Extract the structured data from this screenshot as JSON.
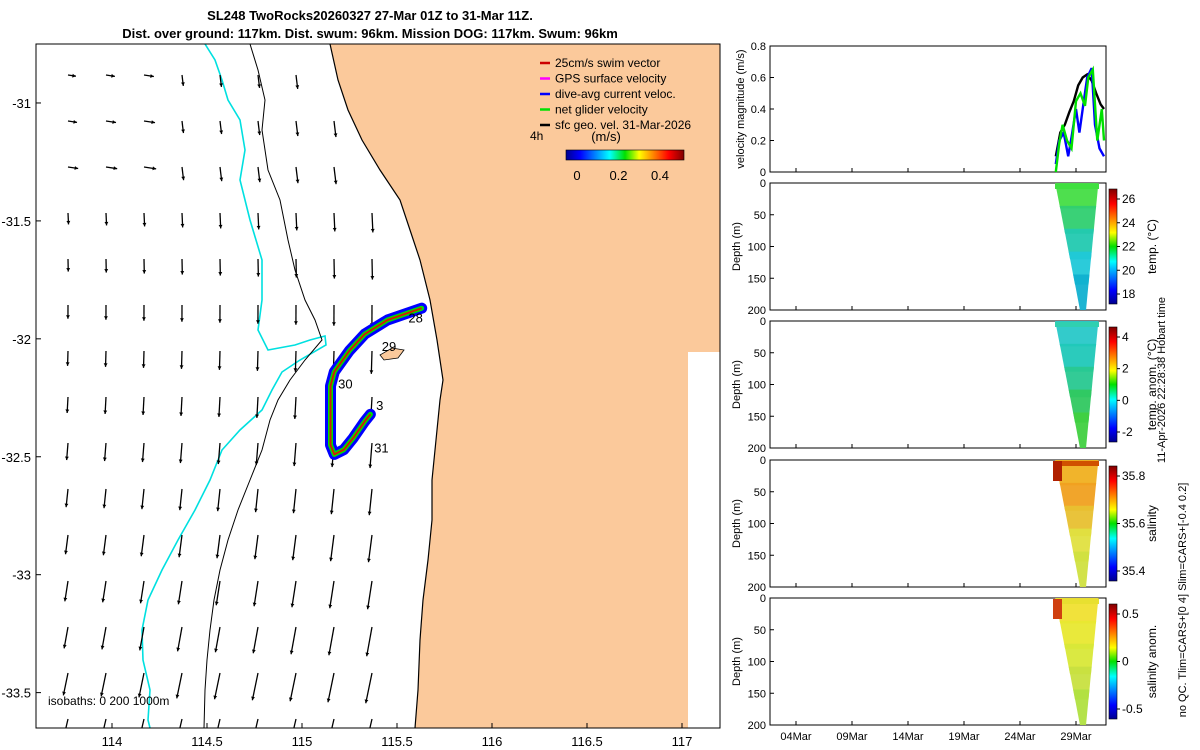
{
  "title": {
    "line1": "SL248 TwoRocks20260327 27-Mar 01Z to 31-Mar 11Z.",
    "line2": "Dist. over ground: 117km. Dist. swum: 96km. Mission DOG: 117km. Swum: 96km"
  },
  "map": {
    "legend": [
      {
        "label": "25cm/s swim vector",
        "color": "#cc0000"
      },
      {
        "label": "GPS surface velocity",
        "color": "#ff00ff"
      },
      {
        "label": "dive-avg current veloc.",
        "color": "#0000ff"
      },
      {
        "label": "net glider velocity",
        "color": "#00e000"
      },
      {
        "label": "sfc geo. vel. 31-Mar-2026",
        "color": "#000000"
      }
    ],
    "colorbar_title": "(m/s)",
    "colorbar_ticks": [
      "0",
      "0.2",
      "0.4"
    ],
    "scale_label": "4h",
    "isobath_label": "isobaths: 0   200  1000m",
    "x_ticks": [
      "114",
      "114.5",
      "115",
      "115.5",
      "116",
      "116.5",
      "117"
    ],
    "y_ticks": [
      "-31",
      "-31.5",
      "-32",
      "-32.5",
      "-33",
      "-33.5"
    ],
    "day_labels": [
      "28",
      "29",
      "30",
      "31",
      "3"
    ],
    "colors": {
      "land": "#fbc99b",
      "isobath_shallow": "#00e5e5",
      "coast": "#000000"
    }
  },
  "panels": {
    "velocity": {
      "ylabel": "velocity magnitude (m/s)",
      "y_ticks": [
        "0",
        "0.2",
        "0.4",
        "0.6",
        "0.8"
      ]
    },
    "temp": {
      "ylabel": "Depth (m)",
      "cbar_label": "temp. (°C)",
      "cbar_ticks": [
        "26",
        "24",
        "22",
        "20",
        "18"
      ]
    },
    "tanom": {
      "ylabel": "Depth (m)",
      "cbar_label": "temp. anom. (°C)",
      "cbar_ticks": [
        "4",
        "2",
        "0",
        "-2"
      ]
    },
    "sal": {
      "ylabel": "Depth (m)",
      "cbar_label": "salinity",
      "cbar_ticks": [
        "35.8",
        "35.6",
        "35.4"
      ]
    },
    "sanom": {
      "ylabel": "Depth (m)",
      "cbar_label": "salinity anom.",
      "cbar_ticks": [
        "0.5",
        "0",
        "-0.5"
      ]
    },
    "depth_ticks": [
      "0",
      "50",
      "100",
      "150",
      "200"
    ],
    "x_ticks": [
      "04Mar",
      "09Mar",
      "14Mar",
      "19Mar",
      "24Mar",
      "29Mar"
    ]
  },
  "side_note": {
    "right": "11-Apr-2026 22:28:38 Hobart time",
    "left": "no QC. Tlim=CARS+[0 4] Slim=CARS+[-0.4 0.2]"
  },
  "chart_data": [
    {
      "type": "scatter",
      "title": "SL248 TwoRocks20260327 27-Mar 01Z to 31-Mar 11Z.",
      "xlim": [
        113.6,
        117.2
      ],
      "ylim": [
        -33.65,
        -30.75
      ],
      "x_ticks": [
        114,
        114.5,
        115,
        115.5,
        116,
        116.5,
        117
      ],
      "y_ticks": [
        -31,
        -31.5,
        -32,
        -32.5,
        -33,
        -33.5
      ],
      "track": {
        "x": [
          115.63,
          115.45,
          115.33,
          115.25,
          115.17,
          115.15,
          115.15,
          115.17,
          115.22,
          115.27,
          115.33,
          115.36
        ],
        "y": [
          -31.87,
          -31.92,
          -31.98,
          -32.05,
          -32.14,
          -32.2,
          -32.45,
          -32.49,
          -32.47,
          -32.42,
          -32.35,
          -32.32
        ]
      },
      "annotations": [
        {
          "text": "28",
          "x": 115.56,
          "y": -31.91
        },
        {
          "text": "29",
          "x": 115.42,
          "y": -32.03
        },
        {
          "text": "30",
          "x": 115.19,
          "y": -32.19
        },
        {
          "text": "3",
          "x": 115.39,
          "y": -32.28
        },
        {
          "text": "31",
          "x": 115.38,
          "y": -32.46
        }
      ]
    },
    {
      "type": "line",
      "ylabel": "velocity magnitude (m/s)",
      "ylim": [
        0,
        0.8
      ],
      "x_ticks": [
        "04Mar",
        "09Mar",
        "14Mar",
        "19Mar",
        "24Mar",
        "29Mar"
      ],
      "series": [
        {
          "color": "#000000",
          "x": [
            27.2,
            27.6,
            28.0,
            28.4,
            28.8,
            29.2,
            29.6,
            30.0,
            30.4,
            30.8,
            31.2,
            31.5
          ],
          "values": [
            0.1,
            0.25,
            0.3,
            0.38,
            0.45,
            0.55,
            0.6,
            0.62,
            0.58,
            0.5,
            0.43,
            0.4
          ]
        },
        {
          "color": "#0000ff",
          "x": [
            27.2,
            27.5,
            27.9,
            28.3,
            28.6,
            29.0,
            29.3,
            29.7,
            30.0,
            30.4,
            30.7,
            31.1,
            31.5
          ],
          "values": [
            0.05,
            0.2,
            0.25,
            0.1,
            0.22,
            0.4,
            0.25,
            0.45,
            0.6,
            0.66,
            0.3,
            0.15,
            0.1
          ]
        },
        {
          "color": "#00e000",
          "x": [
            27.2,
            27.5,
            27.8,
            28.2,
            28.6,
            29.0,
            29.4,
            29.8,
            30.1,
            30.5,
            30.9,
            31.3,
            31.5
          ],
          "values": [
            0.0,
            0.18,
            0.3,
            0.2,
            0.15,
            0.45,
            0.5,
            0.42,
            0.6,
            0.65,
            0.2,
            0.4,
            0.2
          ]
        }
      ]
    }
  ]
}
